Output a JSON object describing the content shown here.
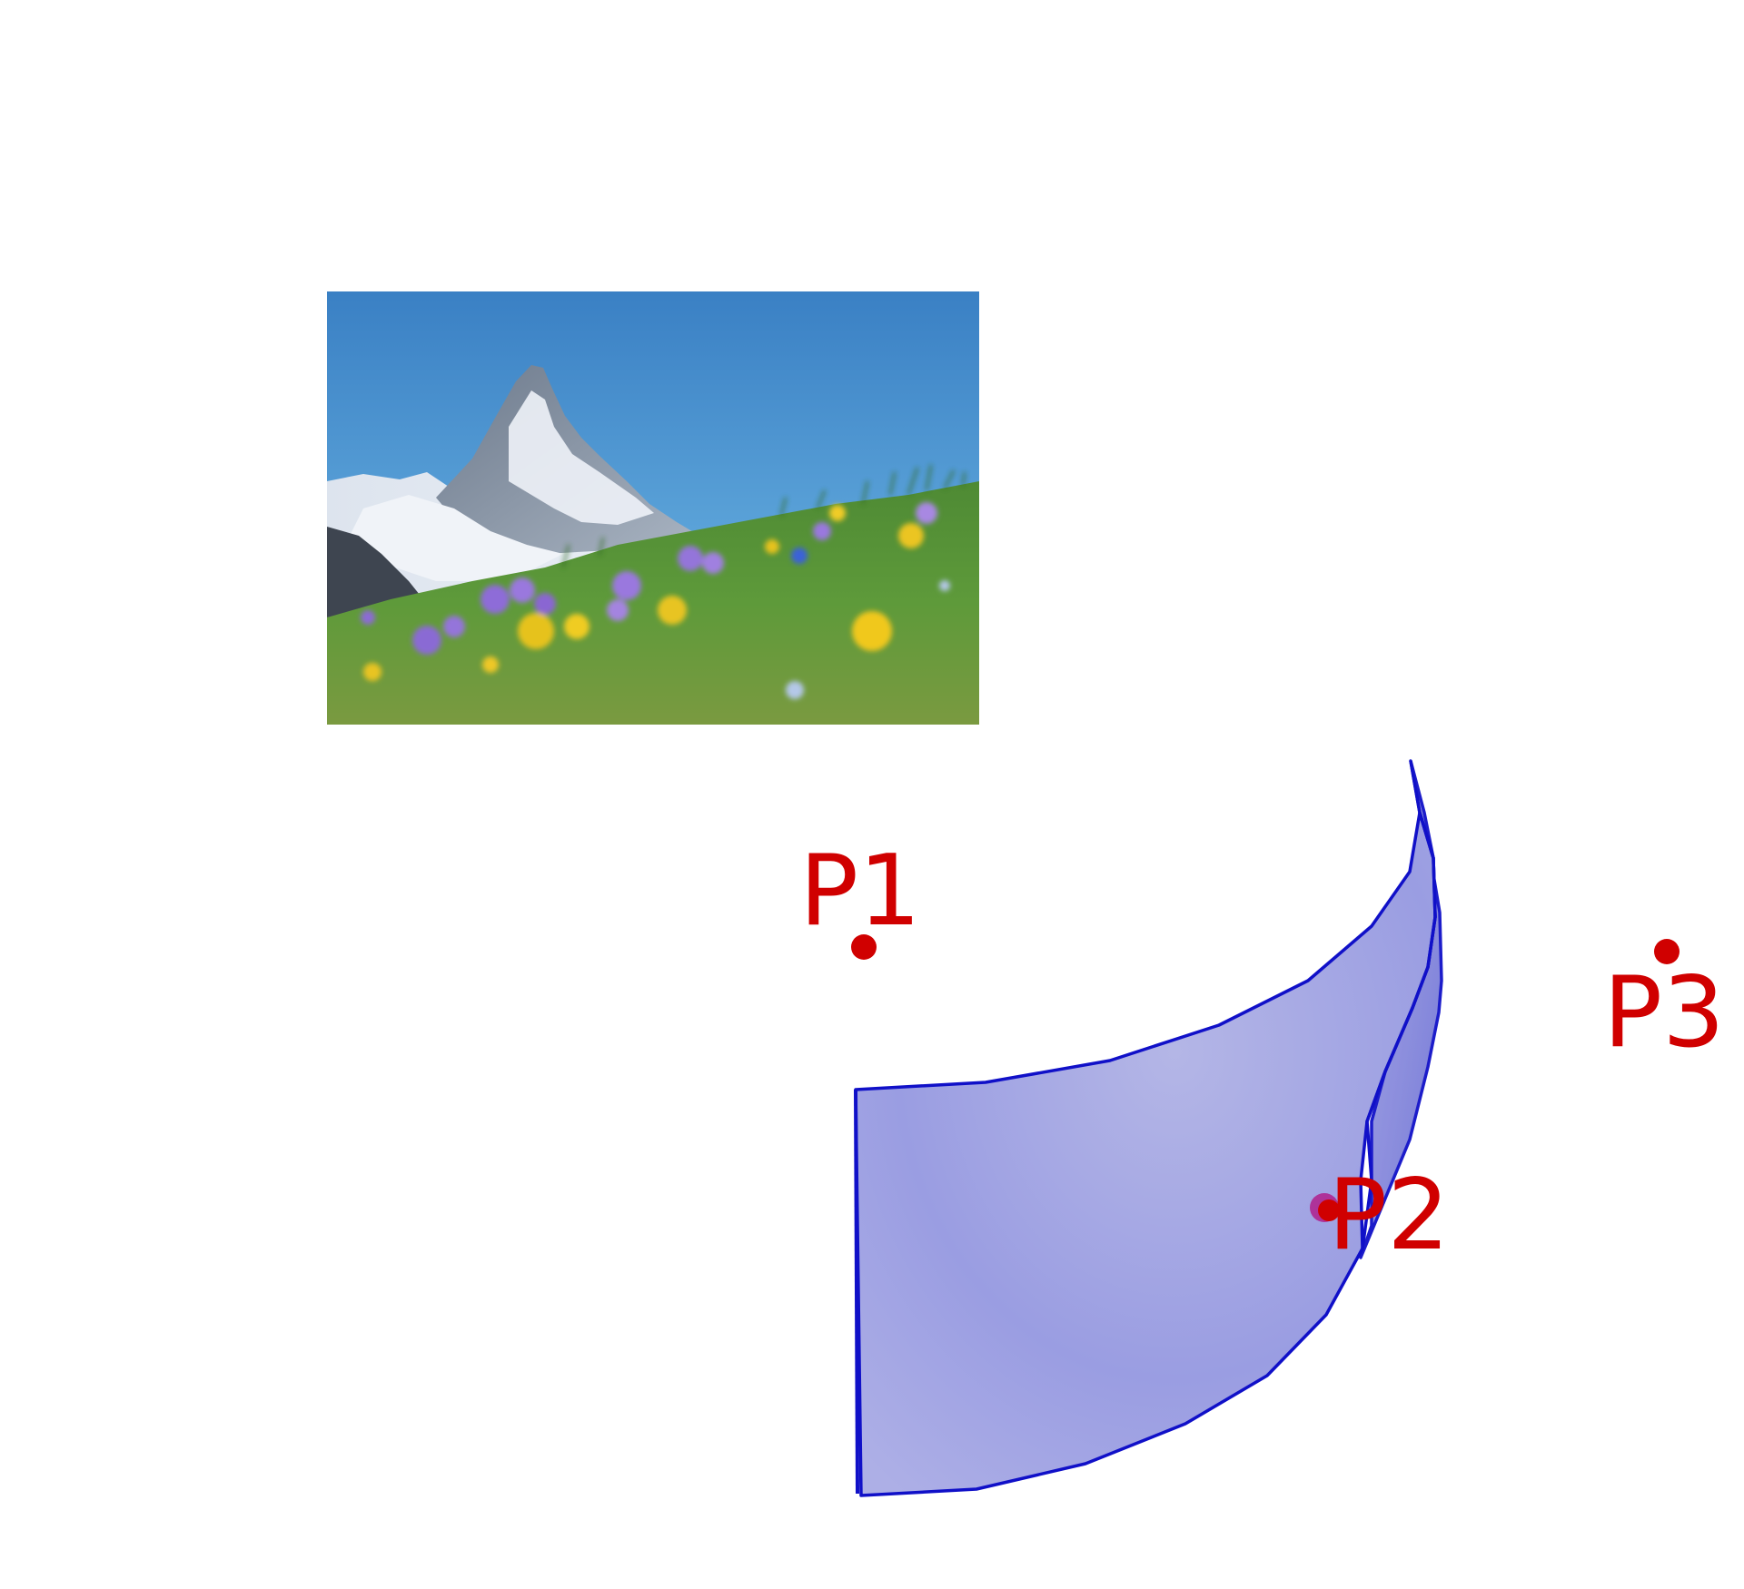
{
  "scene": {
    "image": {
      "subject": "mountain-meadow-photo"
    },
    "surface": {
      "fill": "#8F92E0",
      "stroke": "#1010C8"
    },
    "points": [
      {
        "id": "p1",
        "label": "P1",
        "color": "#D00000"
      },
      {
        "id": "p2",
        "label": "P2",
        "color": "#D00000",
        "marker_color": "#B01E8C"
      },
      {
        "id": "p3",
        "label": "P3",
        "color": "#D00000"
      }
    ]
  }
}
